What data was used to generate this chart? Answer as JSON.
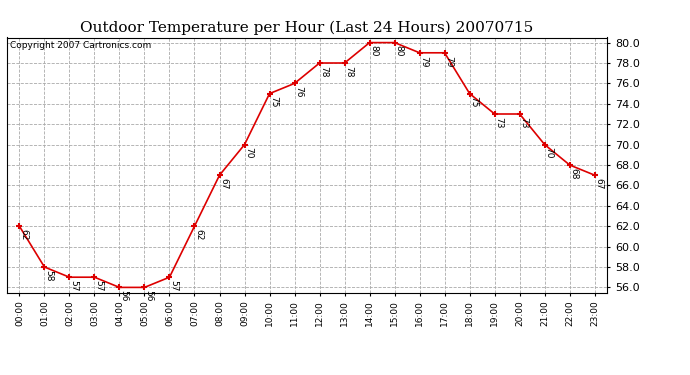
{
  "title": "Outdoor Temperature per Hour (Last 24 Hours) 20070715",
  "copyright": "Copyright 2007 Cartronics.com",
  "hours": [
    "00:00",
    "01:00",
    "02:00",
    "03:00",
    "04:00",
    "05:00",
    "06:00",
    "07:00",
    "08:00",
    "09:00",
    "10:00",
    "11:00",
    "12:00",
    "13:00",
    "14:00",
    "15:00",
    "16:00",
    "17:00",
    "18:00",
    "19:00",
    "20:00",
    "21:00",
    "22:00",
    "23:00"
  ],
  "temps": [
    62,
    58,
    57,
    57,
    56,
    56,
    57,
    62,
    67,
    70,
    75,
    76,
    78,
    78,
    80,
    80,
    79,
    79,
    75,
    73,
    73,
    70,
    68,
    67
  ],
  "ylim_min": 55.5,
  "ylim_max": 80.5,
  "line_color": "#dd0000",
  "marker": "+",
  "marker_color": "#dd0000",
  "grid_color": "#aaaaaa",
  "bg_color": "#ffffff",
  "title_fontsize": 11,
  "label_fontsize": 6.5,
  "copyright_fontsize": 6.5,
  "ytick_fontsize": 8,
  "xtick_fontsize": 6.5
}
